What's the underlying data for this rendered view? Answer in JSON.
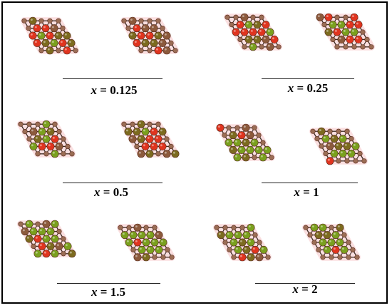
{
  "panels": [
    {
      "caption": {
        "variable": "x",
        "value": "0.125"
      }
    },
    {
      "caption": {
        "variable": "x",
        "value": "0.25"
      }
    },
    {
      "caption": {
        "variable": "x",
        "value": "0.5"
      }
    },
    {
      "caption": {
        "variable": "x",
        "value": "1"
      }
    },
    {
      "caption": {
        "variable": "x",
        "value": "1.5"
      }
    },
    {
      "caption": {
        "variable": "x",
        "value": "2"
      }
    }
  ],
  "colors": {
    "red_atom": "#e0341f",
    "green_atom": "#7aa01e",
    "olive_atom": "#7c6b1f",
    "brown_atom": "#8c5a3c",
    "small_atom": "#9b6d55",
    "halo": "#f6c6c8",
    "bond": "#3a2a22",
    "frame": "#000000"
  }
}
